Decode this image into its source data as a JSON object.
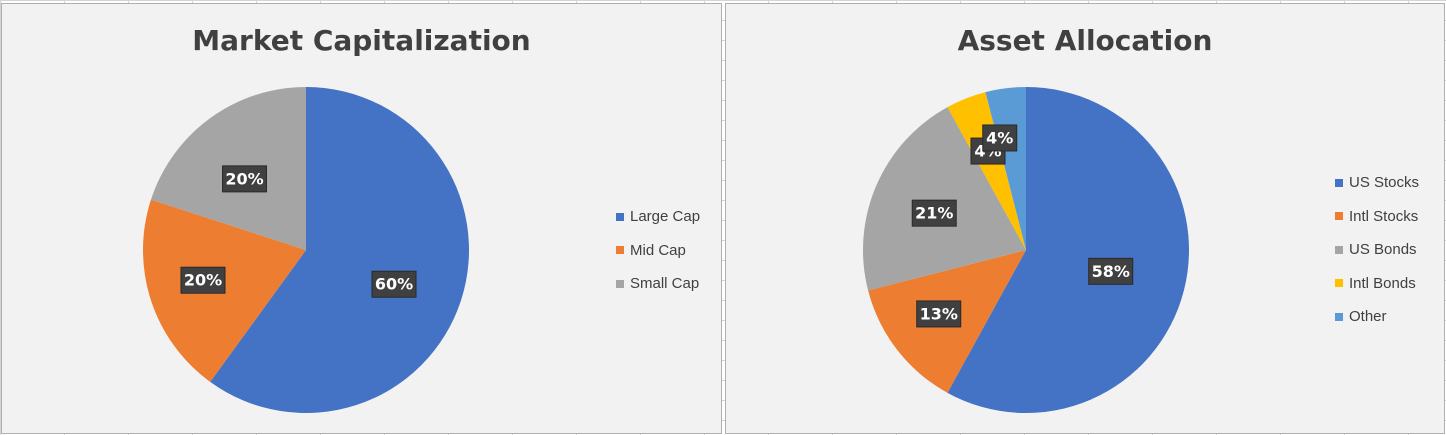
{
  "chart_data": [
    {
      "type": "pie",
      "title": "Market Capitalization",
      "categories": [
        "Large Cap",
        "Mid Cap",
        "Small Cap"
      ],
      "values": [
        60,
        20,
        20
      ],
      "data_labels": [
        "60%",
        "20%",
        "20%"
      ],
      "colors": [
        "#4472c4",
        "#ed7d31",
        "#a5a5a5"
      ],
      "legend_position": "right"
    },
    {
      "type": "pie",
      "title": "Asset Allocation",
      "categories": [
        "US Stocks",
        "Intl Stocks",
        "US Bonds",
        "Intl Bonds",
        "Other"
      ],
      "values": [
        58,
        13,
        21,
        4,
        4
      ],
      "data_labels": [
        "58%",
        "13%",
        "21%",
        "4%",
        "4%"
      ],
      "colors": [
        "#4472c4",
        "#ed7d31",
        "#a5a5a5",
        "#ffc000",
        "#5b9bd5"
      ],
      "legend_position": "right"
    }
  ]
}
